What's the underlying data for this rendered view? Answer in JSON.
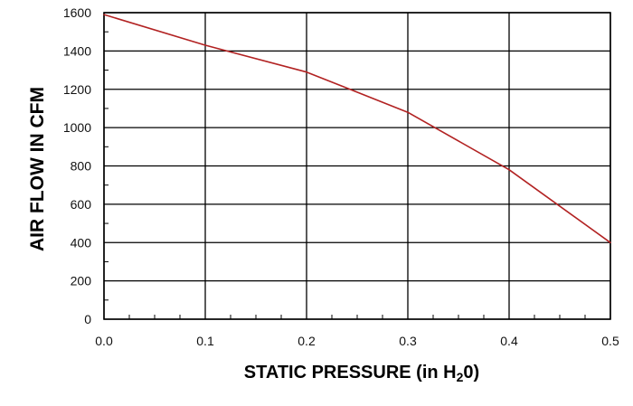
{
  "chart_data": {
    "type": "line",
    "title": "",
    "xlabel": "STATIC PRESSURE (in H",
    "xlabel_sub": "2",
    "xlabel_end": "0)",
    "ylabel": "AIR FLOW IN CFM",
    "xlim": [
      0,
      0.5
    ],
    "ylim": [
      0,
      1600
    ],
    "grid": true,
    "x_ticks": [
      0.0,
      0.1,
      0.2,
      0.3,
      0.4,
      0.5
    ],
    "x_tick_labels": [
      "0.0",
      "0.1",
      "0.2",
      "0.3",
      "0.4",
      "0.5"
    ],
    "y_ticks": [
      0,
      200,
      400,
      600,
      800,
      1000,
      1200,
      1400,
      1600
    ],
    "y_tick_labels": [
      "0",
      "200",
      "400",
      "600",
      "800",
      "1000",
      "1200",
      "1400",
      "1600"
    ],
    "series": [
      {
        "x": [
          0.0,
          0.1,
          0.2,
          0.3,
          0.4,
          0.5
        ],
        "y": [
          1590,
          1430,
          1290,
          1080,
          780,
          400
        ],
        "color": "#b22222"
      }
    ]
  }
}
